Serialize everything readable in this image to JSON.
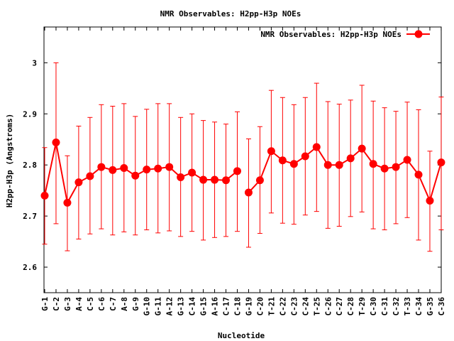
{
  "chart_data": {
    "type": "line",
    "title": "NMR Observables: H2pp-H3p NOEs",
    "xlabel": "Nucleotide",
    "ylabel": "H2pp-H3p (Angstroms)",
    "ylim": [
      2.55,
      3.07
    ],
    "yticks": [
      2.6,
      2.7,
      2.8,
      2.9,
      3
    ],
    "ytick_labels": [
      "2.6",
      "2.7",
      "2.8",
      "2.9",
      "3"
    ],
    "grid": false,
    "legend_position": "top-right",
    "color": "#ff0000",
    "categories": [
      "G-1",
      "C-2",
      "G-3",
      "A-4",
      "C-5",
      "C-6",
      "C-7",
      "A-8",
      "G-9",
      "G-10",
      "G-11",
      "A-12",
      "G-13",
      "C-14",
      "G-15",
      "A-16",
      "C-17",
      "C-18",
      "G-19",
      "C-20",
      "T-21",
      "C-22",
      "C-23",
      "C-24",
      "T-25",
      "C-26",
      "C-27",
      "C-28",
      "T-29",
      "C-30",
      "C-31",
      "C-32",
      "T-33",
      "C-34",
      "G-35",
      "C-36"
    ],
    "segments": [
      [
        0,
        17
      ],
      [
        18,
        35
      ]
    ],
    "series": [
      {
        "name": "NMR Observables: H2pp-H3p NOEs",
        "values": [
          2.74,
          2.844,
          2.726,
          2.766,
          2.778,
          2.796,
          2.79,
          2.794,
          2.779,
          2.791,
          2.793,
          2.796,
          2.776,
          2.785,
          2.771,
          2.771,
          2.77,
          2.788,
          2.746,
          2.77,
          2.827,
          2.809,
          2.802,
          2.817,
          2.835,
          2.8,
          2.8,
          2.813,
          2.832,
          2.802,
          2.793,
          2.796,
          2.81,
          2.781,
          2.73,
          2.805
        ],
        "err_low": [
          2.645,
          2.685,
          2.632,
          2.655,
          2.665,
          2.675,
          2.663,
          2.669,
          2.663,
          2.673,
          2.667,
          2.671,
          2.66,
          2.67,
          2.653,
          2.658,
          2.66,
          2.67,
          2.639,
          2.666,
          2.706,
          2.686,
          2.684,
          2.702,
          2.709,
          2.676,
          2.68,
          2.699,
          2.708,
          2.675,
          2.673,
          2.685,
          2.697,
          2.653,
          2.631,
          2.673
        ],
        "err_high": [
          2.834,
          3.0,
          2.818,
          2.876,
          2.893,
          2.918,
          2.915,
          2.92,
          2.895,
          2.909,
          2.92,
          2.92,
          2.893,
          2.9,
          2.887,
          2.884,
          2.88,
          2.904,
          2.851,
          2.875,
          2.946,
          2.932,
          2.918,
          2.932,
          2.96,
          2.924,
          2.919,
          2.927,
          2.956,
          2.925,
          2.912,
          2.905,
          2.923,
          2.908,
          2.827,
          2.933
        ]
      }
    ]
  }
}
